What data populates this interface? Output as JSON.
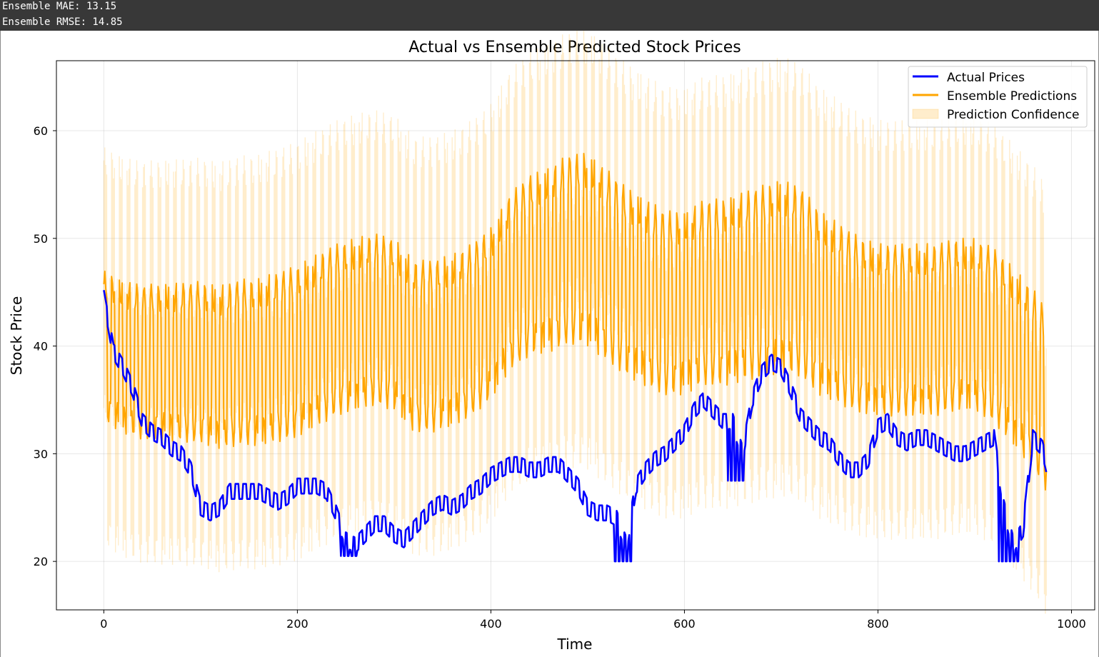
{
  "console": {
    "mae_line": "Ensemble MAE: 13.15",
    "rmse_line": "Ensemble RMSE: 14.85"
  },
  "chart_data": {
    "type": "line",
    "title": "Actual vs Ensemble Predicted Stock Prices",
    "xlabel": "Time",
    "ylabel": "Stock Price",
    "xlim": [
      -49,
      1024
    ],
    "ylim": [
      15.5,
      66.5
    ],
    "xticks": [
      0,
      200,
      400,
      600,
      800,
      1000
    ],
    "yticks": [
      20,
      30,
      40,
      50,
      60
    ],
    "grid": true,
    "legend_position": "top-right",
    "colors": {
      "actual": "#0000ff",
      "ensemble": "#ffa500",
      "confidence": "#ffa500"
    },
    "series": [
      {
        "name": "Actual Prices",
        "kind": "line",
        "period": 8,
        "knots": {
          "x": [
            0,
            5,
            10,
            20,
            30,
            40,
            50,
            60,
            70,
            80,
            90,
            100,
            110,
            120,
            130,
            140,
            150,
            160,
            170,
            180,
            190,
            200,
            210,
            220,
            230,
            240,
            250,
            260,
            270,
            280,
            290,
            300,
            310,
            320,
            330,
            340,
            350,
            360,
            370,
            380,
            390,
            400,
            410,
            420,
            430,
            440,
            450,
            460,
            470,
            480,
            490,
            500,
            510,
            520,
            530,
            540,
            550,
            560,
            570,
            580,
            590,
            600,
            610,
            620,
            630,
            640,
            650,
            660,
            670,
            680,
            690,
            700,
            710,
            720,
            730,
            740,
            750,
            760,
            770,
            780,
            790,
            800,
            810,
            820,
            830,
            840,
            850,
            860,
            870,
            880,
            890,
            900,
            910,
            920,
            930,
            940,
            950,
            960,
            970,
            974
          ],
          "y": [
            44.5,
            42,
            39.5,
            38,
            36,
            33,
            32,
            31.5,
            30.5,
            30,
            28.5,
            25,
            24.5,
            25,
            26.5,
            26.5,
            26.5,
            26.5,
            26,
            25.5,
            26,
            27,
            27,
            27,
            26.5,
            24.5,
            22,
            21.5,
            22.5,
            23.5,
            23.5,
            22.5,
            22,
            23,
            24,
            25,
            25.5,
            25,
            25.5,
            26.5,
            27,
            28,
            28.5,
            29,
            29,
            28.5,
            28.5,
            29,
            29,
            28,
            27,
            25,
            24.5,
            24.5,
            24,
            21.5,
            27,
            28.5,
            29.5,
            30,
            31,
            32,
            34,
            35,
            34,
            33,
            33,
            30,
            35,
            37.5,
            38.5,
            38,
            36,
            33.5,
            32.5,
            31.5,
            31,
            29.5,
            28.5,
            28.5,
            29.5,
            32.5,
            33,
            31.5,
            31,
            31.5,
            31.5,
            31,
            30.5,
            30,
            30,
            30.5,
            31,
            31.5,
            25,
            21.5,
            23,
            31.5,
            30.5,
            29
          ]
        },
        "dips": [
          {
            "x": [
              245,
              262
            ],
            "y": 20.5
          },
          {
            "x": [
              527,
              545
            ],
            "y": 20
          },
          {
            "x": [
              645,
              662
            ],
            "y": 27.5
          },
          {
            "x": [
              925,
              945
            ],
            "y": 20
          }
        ]
      },
      {
        "name": "Ensemble Predictions",
        "kind": "oscillating-line",
        "period": 8,
        "center": {
          "x": [
            0,
            20,
            40,
            60,
            80,
            100,
            120,
            140,
            160,
            180,
            200,
            220,
            240,
            260,
            280,
            300,
            320,
            340,
            360,
            380,
            400,
            420,
            440,
            460,
            480,
            500,
            520,
            540,
            560,
            580,
            600,
            620,
            640,
            660,
            680,
            700,
            720,
            740,
            760,
            780,
            800,
            820,
            840,
            860,
            880,
            900,
            920,
            940,
            960,
            974
          ],
          "y": [
            40,
            39,
            38.5,
            38.5,
            38.5,
            38.5,
            38,
            38.5,
            38.5,
            39,
            39.5,
            40.5,
            41.5,
            42,
            42.5,
            42,
            40,
            40,
            40.5,
            41.5,
            43,
            46,
            47.5,
            48,
            49,
            49,
            47.5,
            46,
            45,
            44,
            44,
            45,
            45,
            45.5,
            46,
            46.5,
            46,
            44,
            43,
            42,
            41.5,
            41.5,
            41.5,
            41.5,
            42,
            42,
            41,
            39,
            37,
            35
          ]
        },
        "amplitude": {
          "x": [
            0,
            100,
            200,
            300,
            400,
            500,
            600,
            700,
            800,
            900,
            974
          ],
          "y": [
            7,
            7.5,
            8,
            8,
            8,
            9,
            8.5,
            9,
            8,
            8,
            8.5
          ]
        }
      },
      {
        "name": "Prediction Confidence",
        "kind": "band",
        "half_width": 11.5
      }
    ]
  }
}
